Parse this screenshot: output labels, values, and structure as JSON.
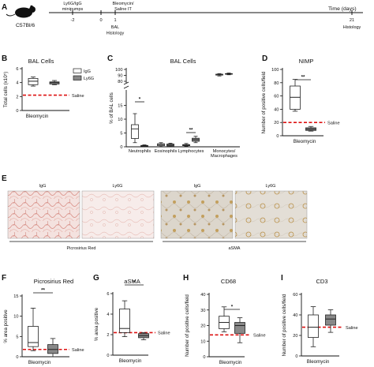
{
  "timeline": {
    "mouse_label": "C57Bl/6",
    "days_label": "Time (days)",
    "events": [
      {
        "day": -2,
        "label_lines": [
          "Ly6G/IgG",
          "minipumps"
        ],
        "pos": "above"
      },
      {
        "day": 1,
        "label_lines": [
          "Bleomycin/",
          "Saline IT"
        ],
        "pos": "above"
      },
      {
        "day": 1,
        "label_lines": [
          "BAL",
          "Histology"
        ],
        "pos": "below"
      },
      {
        "day": 21,
        "label_lines": [
          "Histology"
        ],
        "pos": "below"
      }
    ],
    "ticks": [
      "-2",
      "0",
      "1",
      "21"
    ]
  },
  "panel_letters": [
    "A",
    "B",
    "C",
    "D",
    "E",
    "F",
    "G",
    "H",
    "I"
  ],
  "legend": {
    "items": [
      "IgG",
      "Ly6G"
    ]
  },
  "saline_label": "Saline",
  "group_label": "Bleomycin",
  "histology": {
    "titles": [
      "IgG",
      "Ly6G",
      "IgG",
      "Ly6G"
    ],
    "captions": [
      "Picrosirius Red",
      "aSMA"
    ]
  },
  "colors": {
    "igg": "#ffffff",
    "ly6g": "#888888",
    "saline": "#dd1111",
    "box_edge": "#222222"
  },
  "chart_data": [
    {
      "id": "B",
      "type": "box",
      "title": "BAL Cells",
      "ylabel": "Total cells (x10⁵)",
      "ylim": [
        0,
        6
      ],
      "yticks": [
        0,
        2,
        4,
        6
      ],
      "saline": 2.2,
      "xlabel": "Bleomycin",
      "boxes": [
        {
          "group": "IgG",
          "min": 3.5,
          "q1": 3.7,
          "median": 4.2,
          "q3": 4.6,
          "max": 4.8
        },
        {
          "group": "Ly6G",
          "min": 3.7,
          "q1": 3.8,
          "median": 4.0,
          "q3": 4.1,
          "max": 4.3
        }
      ]
    },
    {
      "id": "C",
      "type": "box",
      "title": "BAL Cells",
      "ylabel": "% of BAL cells",
      "ylim": [
        0,
        100
      ],
      "ybreak": [
        20,
        80
      ],
      "yticks": [
        0,
        5,
        10,
        15,
        80,
        90,
        100
      ],
      "categories": [
        "Neutrophils",
        "Eosinophils",
        "Lymphocytes",
        "Monocytes/ Macrophages"
      ],
      "boxes": [
        {
          "category": "Neutrophils",
          "group": "IgG",
          "min": 1.5,
          "q1": 3,
          "median": 6.5,
          "q3": 8,
          "max": 12
        },
        {
          "category": "Neutrophils",
          "group": "Ly6G",
          "min": 0.1,
          "q1": 0.2,
          "median": 0.3,
          "q3": 0.5,
          "max": 0.7
        },
        {
          "category": "Eosinophils",
          "group": "IgG",
          "min": 0.1,
          "q1": 0.4,
          "median": 0.8,
          "q3": 1.1,
          "max": 1.5
        },
        {
          "category": "Eosinophils",
          "group": "Ly6G",
          "min": 0.1,
          "q1": 0.3,
          "median": 0.6,
          "q3": 1.0,
          "max": 1.3
        },
        {
          "category": "Lymphocytes",
          "group": "IgG",
          "min": 0.2,
          "q1": 0.4,
          "median": 0.6,
          "q3": 0.8,
          "max": 1.2
        },
        {
          "category": "Lymphocytes",
          "group": "Ly6G",
          "min": 1.5,
          "q1": 2,
          "median": 2.6,
          "q3": 3.1,
          "max": 3.8
        },
        {
          "category": "Monocytes/ Macrophages",
          "group": "IgG",
          "min": 89,
          "q1": 90.5,
          "median": 91,
          "q3": 92,
          "max": 93
        },
        {
          "category": "Monocytes/ Macrophages",
          "group": "Ly6G",
          "min": 91,
          "q1": 92,
          "median": 92.5,
          "q3": 93,
          "max": 94
        }
      ],
      "significance": [
        {
          "category": "Neutrophils",
          "label": "*"
        },
        {
          "category": "Lymphocytes",
          "label": "**"
        }
      ]
    },
    {
      "id": "D",
      "type": "box",
      "title": "NIMP",
      "ylabel": "Number of positive cells/field",
      "ylim": [
        0,
        100
      ],
      "yticks": [
        0,
        20,
        40,
        60,
        80,
        100
      ],
      "saline": 20,
      "xlabel": "Bleomycin",
      "boxes": [
        {
          "group": "IgG",
          "min": 37,
          "q1": 40,
          "median": 58,
          "q3": 75,
          "max": 85
        },
        {
          "group": "Ly6G",
          "min": 7,
          "q1": 8,
          "median": 10,
          "q3": 12,
          "max": 14
        }
      ],
      "significance": [
        {
          "label": "**"
        }
      ]
    },
    {
      "id": "F",
      "type": "box",
      "title": "Picrosirius Red",
      "ylabel": "% area positive",
      "ylim": [
        0,
        15
      ],
      "yticks": [
        0,
        5,
        10,
        15
      ],
      "saline": 1.8,
      "xlabel": "Bleomycin",
      "boxes": [
        {
          "group": "IgG",
          "min": 1.5,
          "q1": 2.5,
          "median": 3.5,
          "q3": 7.5,
          "max": 12
        },
        {
          "group": "Ly6G",
          "min": 0,
          "q1": 0.8,
          "median": 1.8,
          "q3": 3,
          "max": 4.5
        }
      ],
      "significance": [
        {
          "label": "**"
        }
      ]
    },
    {
      "id": "G",
      "type": "box",
      "title": "aSMA",
      "ylabel": "% area positive",
      "ylim": [
        0,
        6
      ],
      "yticks": [
        0,
        2,
        4,
        6
      ],
      "saline": 2.2,
      "xlabel": "Bleomycin",
      "boxes": [
        {
          "group": "IgG",
          "min": 1.8,
          "q1": 2.2,
          "median": 2.6,
          "q3": 4.5,
          "max": 5.3
        },
        {
          "group": "Ly6G",
          "min": 1.5,
          "q1": 1.7,
          "median": 1.9,
          "q3": 2.1,
          "max": 2.2
        }
      ],
      "significance": [
        {
          "label": "*"
        }
      ]
    },
    {
      "id": "H",
      "type": "box",
      "title": "CD68",
      "ylabel": "Number of positive cells/field",
      "ylim": [
        0,
        40
      ],
      "yticks": [
        0,
        10,
        20,
        30,
        40
      ],
      "saline": 14,
      "xlabel": "Bleomycin",
      "boxes": [
        {
          "group": "IgG",
          "min": 16,
          "q1": 18,
          "median": 22,
          "q3": 26,
          "max": 32
        },
        {
          "group": "Ly6G",
          "min": 9,
          "q1": 15,
          "median": 20,
          "q3": 22,
          "max": 25
        }
      ],
      "significance": [
        {
          "label": "*"
        }
      ]
    },
    {
      "id": "I",
      "type": "box",
      "title": "CD3",
      "ylabel": "Number of positive cells/field",
      "ylim": [
        0,
        60
      ],
      "yticks": [
        0,
        20,
        40,
        60
      ],
      "saline": 28,
      "xlabel": "Bleomycin",
      "boxes": [
        {
          "group": "IgG",
          "min": 9,
          "q1": 18,
          "median": 28,
          "q3": 40,
          "max": 48
        },
        {
          "group": "Ly6G",
          "min": 23,
          "q1": 30,
          "median": 36,
          "q3": 40,
          "max": 45
        }
      ]
    }
  ]
}
